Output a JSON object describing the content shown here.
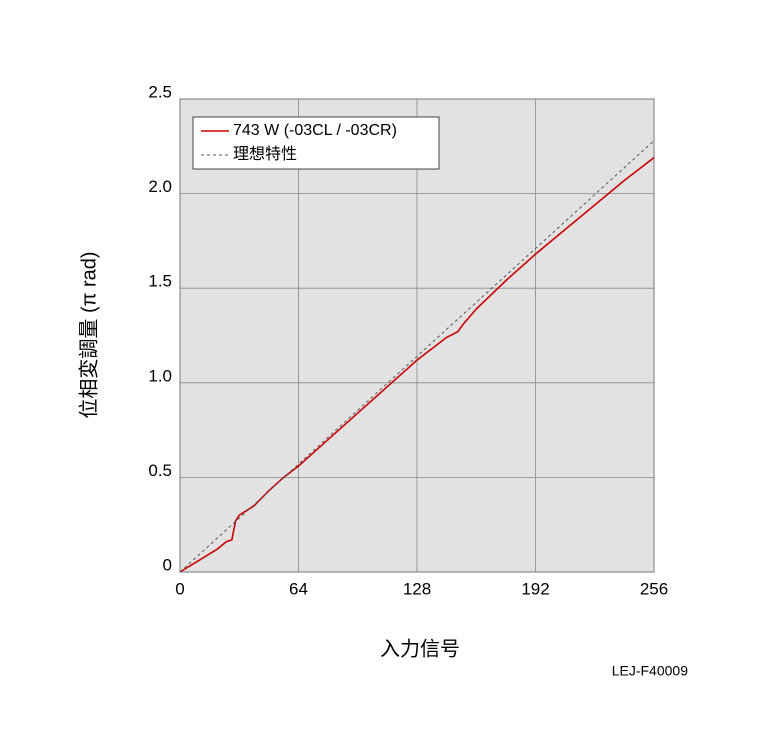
{
  "chart_data": {
    "type": "line",
    "xlabel": "入力信号",
    "ylabel": "位相変調量 (π rad)",
    "note": "LEJ-F40009",
    "xlim": [
      0,
      256
    ],
    "ylim": [
      0,
      2.5
    ],
    "xticks": [
      0,
      64,
      128,
      192,
      256
    ],
    "yticks": [
      {
        "value": 0,
        "label": "0"
      },
      0.5,
      {
        "value": 1,
        "label": "1.0"
      },
      1.5,
      {
        "value": 2,
        "label": "2.0"
      },
      2.5
    ],
    "grid": true,
    "legend": "upper left",
    "series": [
      {
        "name": "743 W (-03CL / -03CR)",
        "color": "#cc0000",
        "style": "solid",
        "x": [
          0,
          5,
          10,
          15,
          20,
          25,
          28,
          30,
          32,
          40,
          48,
          56,
          64,
          80,
          96,
          112,
          128,
          144,
          150,
          153,
          160,
          176,
          192,
          208,
          224,
          240,
          256
        ],
        "values": [
          0,
          0.03,
          0.06,
          0.09,
          0.12,
          0.16,
          0.17,
          0.27,
          0.3,
          0.35,
          0.43,
          0.5,
          0.56,
          0.7,
          0.84,
          0.98,
          1.12,
          1.24,
          1.27,
          1.31,
          1.39,
          1.54,
          1.68,
          1.81,
          1.94,
          2.07,
          2.19
        ]
      },
      {
        "name": "理想特性",
        "color": "#555555",
        "style": "dashed",
        "x": [
          0,
          256
        ],
        "values": [
          0,
          2.28
        ]
      }
    ]
  }
}
